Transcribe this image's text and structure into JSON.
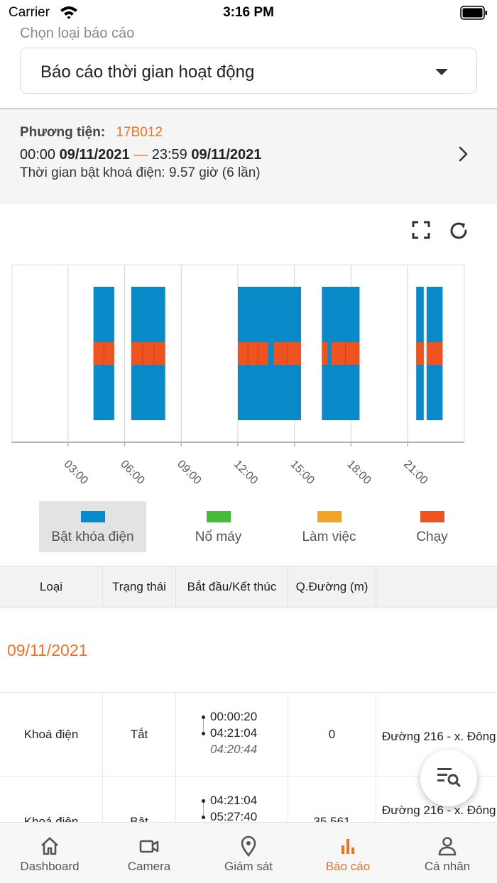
{
  "status_bar": {
    "carrier": "Carrier",
    "time": "3:16 PM"
  },
  "report_select": {
    "label": "Chọn loại báo cáo",
    "value": "Báo cáo thời gian hoạt động"
  },
  "vehicle": {
    "label": "Phương tiện:",
    "plate": "17B012",
    "start_time": "00:00",
    "start_date": "09/11/2021",
    "dash": "—",
    "end_time": "23:59",
    "end_date": "09/11/2021",
    "summary": "Thời gian bật khoá điện: 9.57 giờ (6 lần)"
  },
  "chart_data": {
    "type": "timeline",
    "x_unit": "hours",
    "xlim": [
      0,
      24
    ],
    "x_ticks": [
      "03:00",
      "06:00",
      "09:00",
      "12:00",
      "15:00",
      "18:00",
      "21:00"
    ],
    "x_tick_values": [
      3,
      6,
      9,
      12,
      15,
      18,
      21
    ],
    "series": [
      {
        "name": "Bật khóa điện",
        "color": "#0a89c8",
        "intervals": [
          [
            4.35,
            5.45
          ],
          [
            6.35,
            8.15
          ],
          [
            12.0,
            15.35
          ],
          [
            16.45,
            18.45
          ],
          [
            21.45,
            21.85
          ],
          [
            22.0,
            22.85
          ]
        ]
      },
      {
        "name": "Chạy",
        "color": "#ef5420",
        "intervals": [
          [
            4.35,
            5.45
          ],
          [
            6.35,
            8.15
          ],
          [
            12.0,
            13.6
          ],
          [
            13.9,
            15.35
          ],
          [
            16.45,
            16.75
          ],
          [
            16.95,
            18.45
          ],
          [
            21.45,
            21.85
          ],
          [
            22.0,
            22.85
          ]
        ]
      }
    ],
    "grid": true
  },
  "legend": [
    {
      "label": "Bật khóa điện",
      "color": "#0a89c8",
      "active": true
    },
    {
      "label": "Nổ máy",
      "color": "#4ab93b",
      "active": false
    },
    {
      "label": "Làm việc",
      "color": "#eda62a",
      "active": false
    },
    {
      "label": "Chạy",
      "color": "#ef5420",
      "active": false
    }
  ],
  "table": {
    "headers": [
      "Loại",
      "Trạng thái",
      "Bắt đầu/Kết thúc",
      "Q.Đường (m)"
    ],
    "date_heading": "09/11/2021",
    "rows": [
      {
        "type": "Khoá điện",
        "state": "Tắt",
        "start": "00:00:20",
        "end": "04:21:04",
        "duration": "04:20:44",
        "distance": "0",
        "address": "Đường 216 - x. Đông"
      },
      {
        "type": "Khoá điện",
        "state": "Bật",
        "start": "04:21:04",
        "end": "05:27:40",
        "duration": "",
        "distance": "35.561",
        "address": "Đường 216 - x. Đông"
      }
    ]
  },
  "bottom_nav": [
    {
      "label": "Dashboard",
      "icon": "home-icon",
      "active": false
    },
    {
      "label": "Camera",
      "icon": "camera-icon",
      "active": false
    },
    {
      "label": "Giám sát",
      "icon": "location-pin-icon",
      "active": false
    },
    {
      "label": "Báo cáo",
      "icon": "bar-chart-icon",
      "active": true
    },
    {
      "label": "Cá nhân",
      "icon": "person-icon",
      "active": false
    }
  ]
}
